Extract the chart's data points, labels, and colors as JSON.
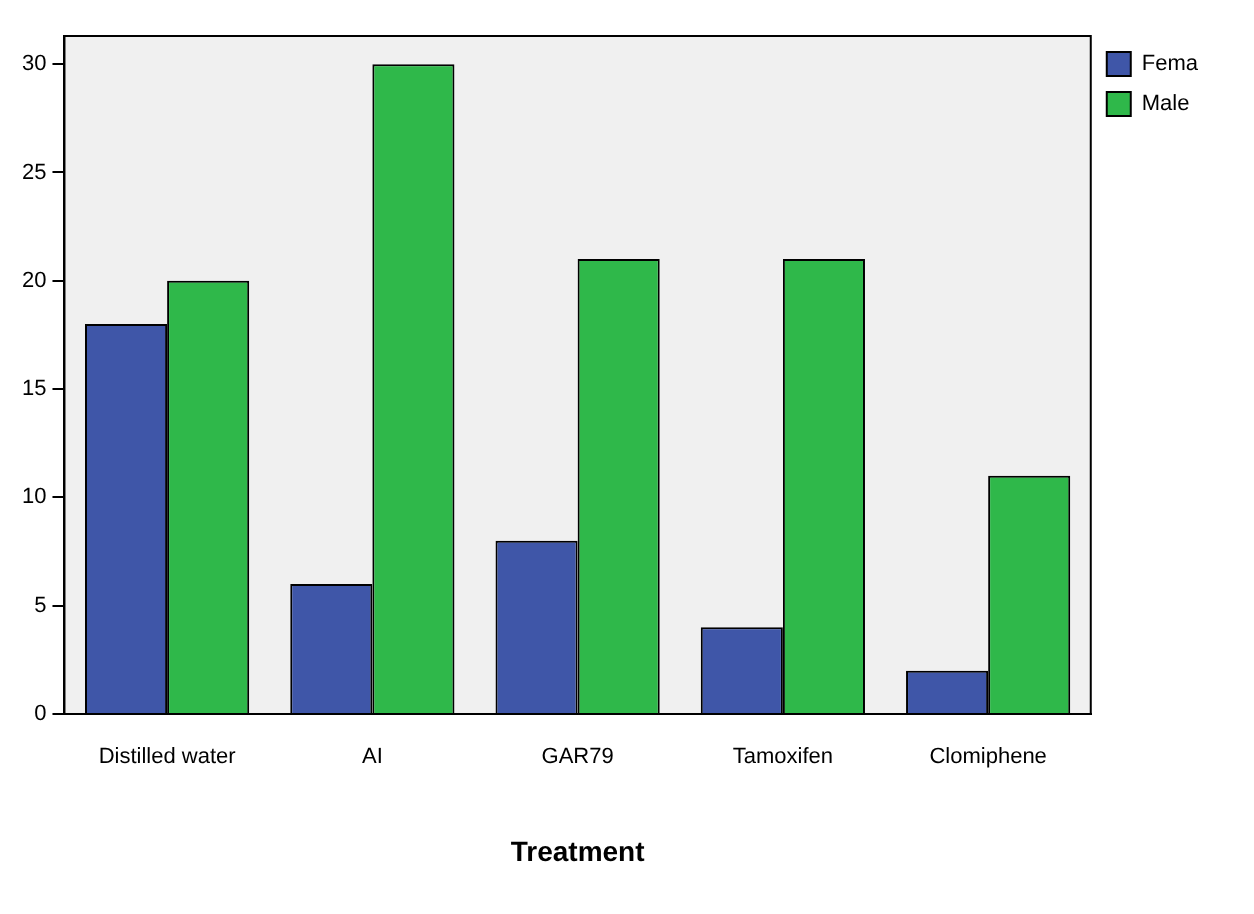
{
  "chart_data": {
    "type": "bar",
    "xlabel": "Treatment",
    "categories": [
      "Distilled water",
      "AI",
      "GAR79",
      "Tamoxifen",
      "Clomiphene"
    ],
    "series": [
      {
        "name": "Fema",
        "color": "#3f56a8",
        "values": [
          18,
          6,
          8,
          4,
          2
        ]
      },
      {
        "name": "Male",
        "color": "#2fb84a",
        "values": [
          20,
          30,
          21,
          21,
          11
        ]
      }
    ],
    "ylim": [
      0,
      31.3
    ],
    "yticks": [
      0,
      5,
      10,
      15,
      20,
      25,
      30
    ],
    "grid": false,
    "legend": "top right"
  }
}
